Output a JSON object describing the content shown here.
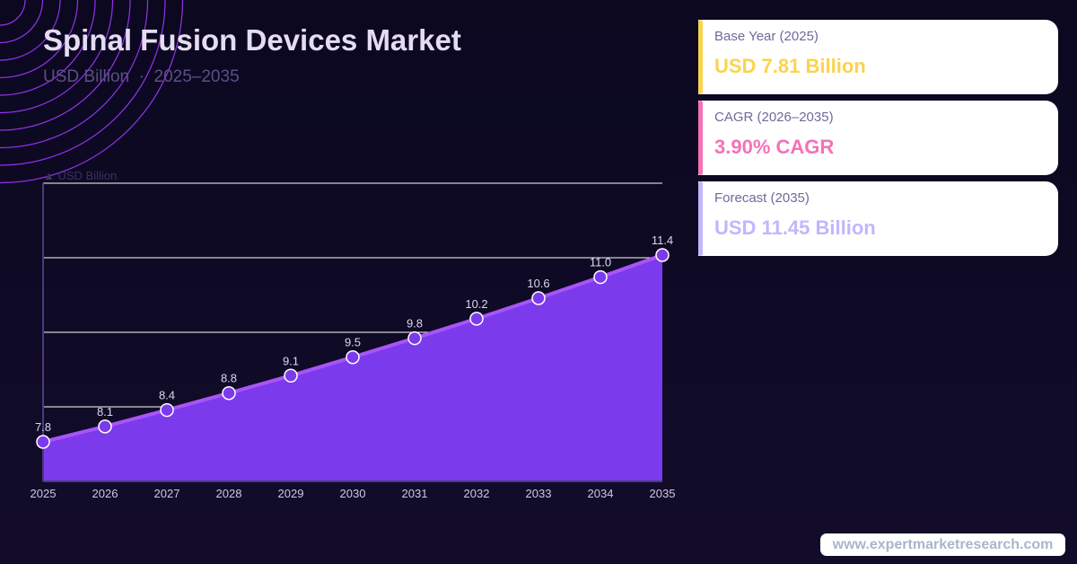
{
  "header": {
    "title": "Spinal Fusion Devices Market",
    "subtitle": "USD Billion  ·  2025–2035"
  },
  "cards": [
    {
      "label": "Base Year (2025)",
      "value": "USD 7.81 Billion",
      "color": "#fcd34d"
    },
    {
      "label": "CAGR (2026–2035)",
      "value": "3.90% CAGR",
      "color": "#f472b6"
    },
    {
      "label": "Forecast (2035)",
      "value": "USD 11.45 Billion",
      "color": "#c4b5fd"
    }
  ],
  "footer": {
    "url": "www.expertmarketresearch.com"
  },
  "chart_data": {
    "type": "area",
    "ylabel": "▲ USD Billion",
    "categories": [
      "2025",
      "2026",
      "2027",
      "2028",
      "2029",
      "2030",
      "2031",
      "2032",
      "2033",
      "2034",
      "2035"
    ],
    "values": [
      7.81,
      8.11,
      8.43,
      8.76,
      9.1,
      9.46,
      9.83,
      10.21,
      10.61,
      11.02,
      11.45
    ],
    "data_labels": [
      "7.8",
      "8.1",
      "8.4",
      "8.8",
      "9.1",
      "9.5",
      "9.8",
      "10.2",
      "10.6",
      "11.0",
      "11.4"
    ],
    "ylim": [
      7.04,
      12.85
    ],
    "grid": true,
    "colors": {
      "fill": "#7c3aed",
      "line": "#a855f7",
      "marker_stroke": "#ffffff"
    }
  }
}
